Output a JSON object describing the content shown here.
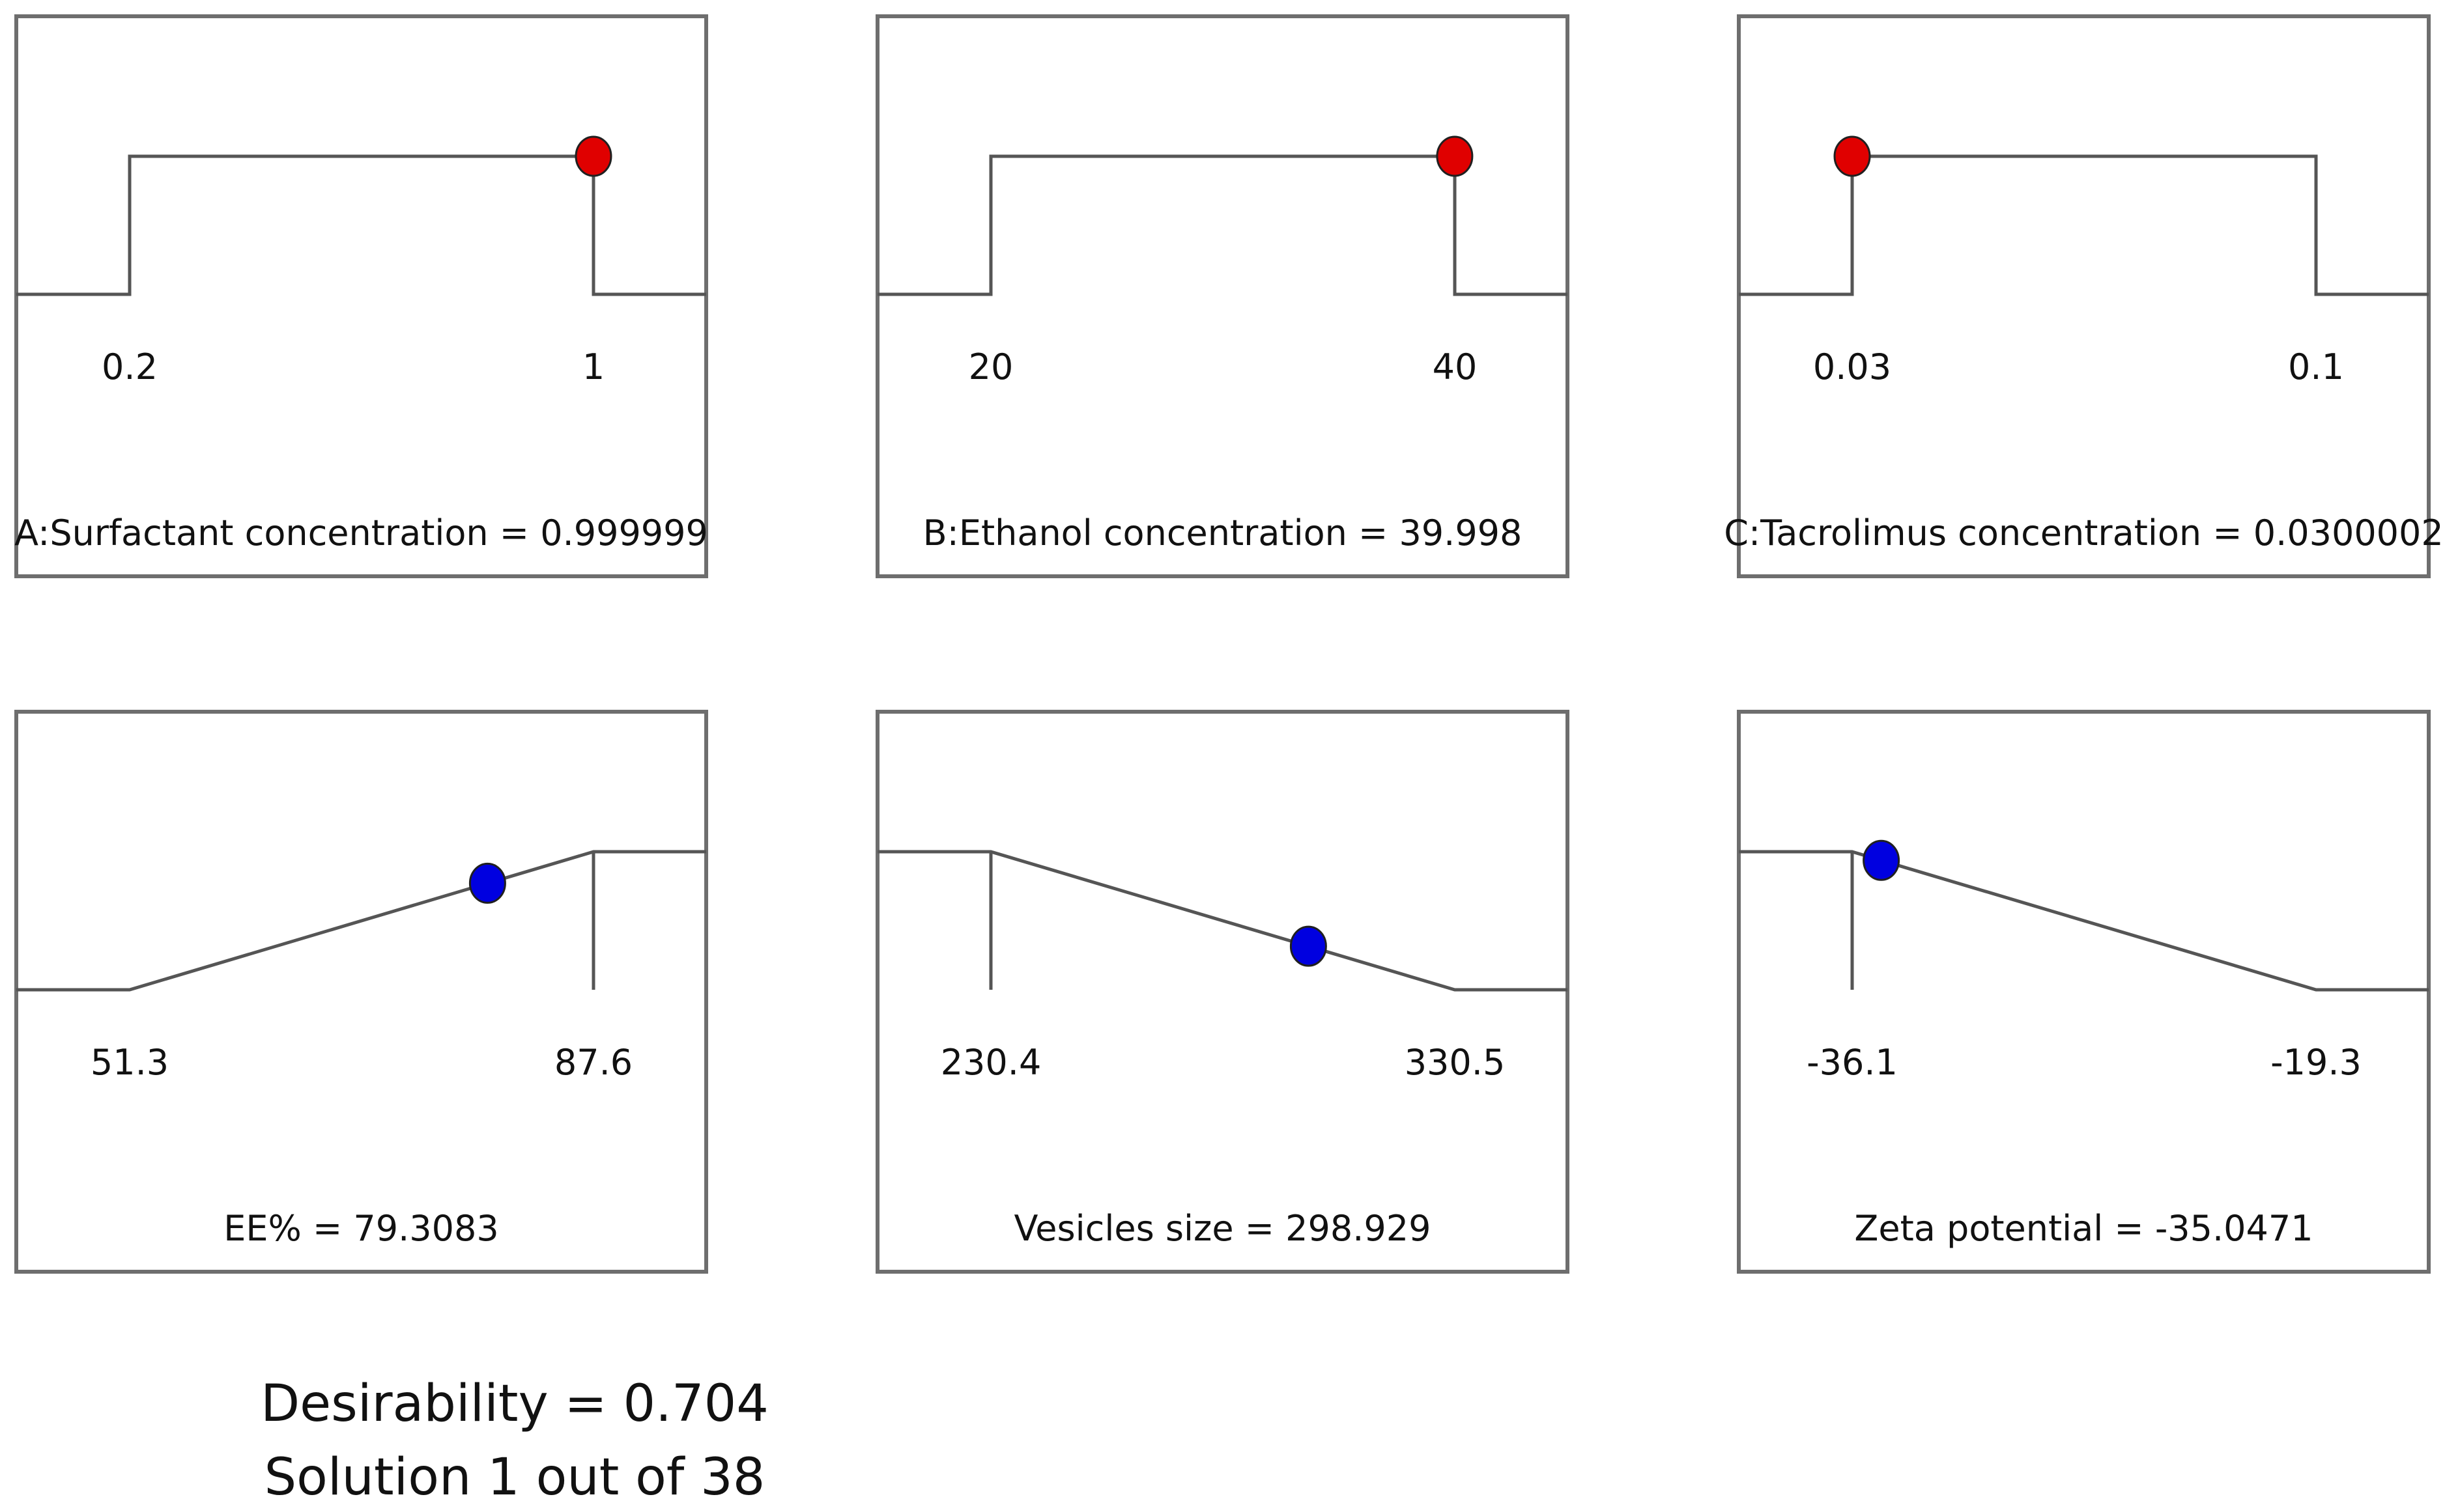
{
  "chart_data": {
    "type": "desirability-ramps",
    "panels": [
      {
        "id": "A",
        "kind": "factor",
        "label": "A:Surfactant concentration = 0.999999",
        "low": 0.2,
        "high": 1,
        "low_label": "0.2",
        "high_label": "1",
        "value": 0.999999,
        "shape": "in-range",
        "marker_color": "#e00000"
      },
      {
        "id": "B",
        "kind": "factor",
        "label": "B:Ethanol concentration = 39.998",
        "low": 20,
        "high": 40,
        "low_label": "20",
        "high_label": "40",
        "value": 39.998,
        "shape": "in-range",
        "marker_color": "#e00000"
      },
      {
        "id": "C",
        "kind": "factor",
        "label": "C:Tacrolimus concentration = 0.0300002",
        "low": 0.03,
        "high": 0.1,
        "low_label": "0.03",
        "high_label": "0.1",
        "value": 0.0300002,
        "shape": "in-range",
        "marker_color": "#e00000"
      },
      {
        "id": "EE",
        "kind": "response",
        "label": "EE% = 79.3083",
        "low": 51.3,
        "high": 87.6,
        "low_label": "51.3",
        "high_label": "87.6",
        "value": 79.3083,
        "shape": "maximize",
        "marker_color": "#0000e0"
      },
      {
        "id": "VS",
        "kind": "response",
        "label": "Vesicles size = 298.929",
        "low": 230.4,
        "high": 330.5,
        "low_label": "230.4",
        "high_label": "330.5",
        "value": 298.929,
        "shape": "minimize",
        "marker_color": "#0000e0"
      },
      {
        "id": "ZP",
        "kind": "response",
        "label": "Zeta potential = -35.0471",
        "low": -36.1,
        "high": -19.3,
        "low_label": "-36.1",
        "high_label": "-19.3",
        "value": -35.0471,
        "shape": "minimize",
        "marker_color": "#0000e0"
      }
    ],
    "desirability": "Desirability = 0.704",
    "solution": "Solution 1 out of 38"
  }
}
